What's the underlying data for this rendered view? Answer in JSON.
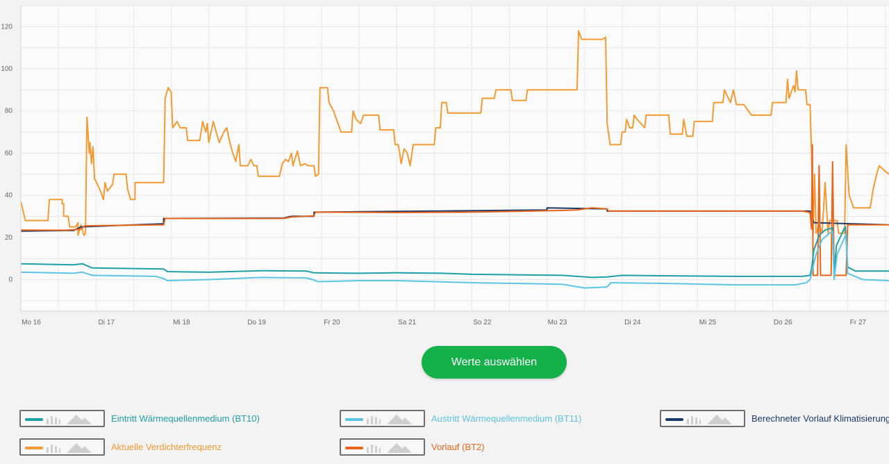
{
  "chart_data": {
    "type": "line",
    "x_range": [
      0,
      11.55
    ],
    "x_ticks": [
      {
        "x": 0.12,
        "label": "Mo 16"
      },
      {
        "x": 1.12,
        "label": "Di 17"
      },
      {
        "x": 2.12,
        "label": "Mi 18"
      },
      {
        "x": 3.12,
        "label": "Do 19"
      },
      {
        "x": 4.12,
        "label": "Fr 20"
      },
      {
        "x": 5.12,
        "label": "Sa 21"
      },
      {
        "x": 6.12,
        "label": "So 22"
      },
      {
        "x": 7.12,
        "label": "Mo 23"
      },
      {
        "x": 8.12,
        "label": "Di 24"
      },
      {
        "x": 9.12,
        "label": "Mi 25"
      },
      {
        "x": 10.12,
        "label": "Do 26"
      },
      {
        "x": 11.12,
        "label": "Fr 27"
      }
    ],
    "ylim": [
      -15,
      130
    ],
    "y_ticks": [
      0,
      20,
      40,
      60,
      80,
      100,
      120
    ],
    "grid": true,
    "series": [
      {
        "name": "Aktuelle Verdichterfrequenz",
        "color": "#f39a32",
        "points": [
          [
            0,
            37
          ],
          [
            0.02,
            34
          ],
          [
            0.06,
            28
          ],
          [
            0.36,
            28
          ],
          [
            0.38,
            38
          ],
          [
            0.55,
            38
          ],
          [
            0.55,
            36
          ],
          [
            0.57,
            36
          ],
          [
            0.57,
            30
          ],
          [
            0.63,
            30
          ],
          [
            0.65,
            25
          ],
          [
            0.73,
            25
          ],
          [
            0.76,
            27
          ],
          [
            0.76,
            21
          ],
          [
            0.8,
            26
          ],
          [
            0.84,
            21
          ],
          [
            0.86,
            22
          ],
          [
            0.88,
            77
          ],
          [
            0.89,
            72
          ],
          [
            0.91,
            60
          ],
          [
            0.92,
            65
          ],
          [
            0.94,
            55
          ],
          [
            0.96,
            63
          ],
          [
            0.98,
            48
          ],
          [
            1.06,
            42
          ],
          [
            1.1,
            38
          ],
          [
            1.12,
            46
          ],
          [
            1.15,
            42
          ],
          [
            1.22,
            45
          ],
          [
            1.24,
            50
          ],
          [
            1.4,
            50
          ],
          [
            1.42,
            43
          ],
          [
            1.46,
            38
          ],
          [
            1.52,
            38
          ],
          [
            1.52,
            46
          ],
          [
            1.9,
            46
          ],
          [
            1.92,
            86
          ],
          [
            1.96,
            91
          ],
          [
            2.0,
            89
          ],
          [
            2.02,
            72
          ],
          [
            2.08,
            75
          ],
          [
            2.12,
            72
          ],
          [
            2.2,
            72
          ],
          [
            2.22,
            66
          ],
          [
            2.38,
            66
          ],
          [
            2.42,
            75
          ],
          [
            2.46,
            70
          ],
          [
            2.48,
            74
          ],
          [
            2.5,
            65
          ],
          [
            2.56,
            75
          ],
          [
            2.6,
            70
          ],
          [
            2.64,
            65
          ],
          [
            2.7,
            70
          ],
          [
            2.74,
            72
          ],
          [
            2.78,
            65
          ],
          [
            2.82,
            60
          ],
          [
            2.86,
            56
          ],
          [
            2.9,
            64
          ],
          [
            2.92,
            54
          ],
          [
            3.02,
            54
          ],
          [
            3.06,
            57
          ],
          [
            3.1,
            54
          ],
          [
            3.14,
            54
          ],
          [
            3.16,
            49
          ],
          [
            3.44,
            49
          ],
          [
            3.48,
            55
          ],
          [
            3.52,
            57
          ],
          [
            3.56,
            56
          ],
          [
            3.6,
            60
          ],
          [
            3.62,
            54
          ],
          [
            3.68,
            61
          ],
          [
            3.72,
            54
          ],
          [
            3.78,
            55
          ],
          [
            3.82,
            54
          ],
          [
            3.9,
            54
          ],
          [
            3.92,
            49
          ],
          [
            3.96,
            50
          ],
          [
            3.98,
            91
          ],
          [
            4.08,
            91
          ],
          [
            4.1,
            84
          ],
          [
            4.16,
            80
          ],
          [
            4.2,
            76
          ],
          [
            4.24,
            72
          ],
          [
            4.26,
            70
          ],
          [
            4.4,
            70
          ],
          [
            4.42,
            80
          ],
          [
            4.46,
            76
          ],
          [
            4.52,
            74
          ],
          [
            4.56,
            78
          ],
          [
            4.76,
            78
          ],
          [
            4.78,
            71
          ],
          [
            4.96,
            71
          ],
          [
            4.98,
            64
          ],
          [
            5.02,
            64
          ],
          [
            5.04,
            60
          ],
          [
            5.06,
            55
          ],
          [
            5.1,
            62
          ],
          [
            5.14,
            60
          ],
          [
            5.18,
            54
          ],
          [
            5.22,
            64
          ],
          [
            5.5,
            64
          ],
          [
            5.52,
            72
          ],
          [
            5.58,
            72
          ],
          [
            5.6,
            84
          ],
          [
            5.66,
            84
          ],
          [
            5.68,
            79
          ],
          [
            6.12,
            79
          ],
          [
            6.14,
            86
          ],
          [
            6.3,
            86
          ],
          [
            6.32,
            90
          ],
          [
            6.52,
            90
          ],
          [
            6.54,
            85
          ],
          [
            6.72,
            85
          ],
          [
            6.74,
            90
          ],
          [
            7.4,
            90
          ],
          [
            7.42,
            118
          ],
          [
            7.46,
            114
          ],
          [
            7.74,
            114
          ],
          [
            7.78,
            115
          ],
          [
            7.8,
            74
          ],
          [
            7.84,
            64
          ],
          [
            7.98,
            64
          ],
          [
            8.0,
            70
          ],
          [
            8.04,
            70
          ],
          [
            8.06,
            76
          ],
          [
            8.1,
            72
          ],
          [
            8.14,
            72
          ],
          [
            8.16,
            78
          ],
          [
            8.2,
            76
          ],
          [
            8.3,
            72
          ],
          [
            8.32,
            78
          ],
          [
            8.62,
            78
          ],
          [
            8.64,
            69
          ],
          [
            8.8,
            69
          ],
          [
            8.82,
            76
          ],
          [
            8.86,
            68
          ],
          [
            8.94,
            68
          ],
          [
            8.96,
            75
          ],
          [
            9.2,
            75
          ],
          [
            9.22,
            84
          ],
          [
            9.34,
            84
          ],
          [
            9.36,
            90
          ],
          [
            9.44,
            84
          ],
          [
            9.48,
            90
          ],
          [
            9.52,
            83
          ],
          [
            9.62,
            83
          ],
          [
            9.64,
            82
          ],
          [
            9.72,
            78
          ],
          [
            9.98,
            78
          ],
          [
            10.0,
            84
          ],
          [
            10.18,
            84
          ],
          [
            10.2,
            95
          ],
          [
            10.22,
            86
          ],
          [
            10.28,
            92
          ],
          [
            10.3,
            89
          ],
          [
            10.32,
            99
          ],
          [
            10.34,
            90
          ],
          [
            10.44,
            90
          ],
          [
            10.46,
            83
          ],
          [
            10.5,
            83
          ],
          [
            10.52,
            60
          ],
          [
            10.54,
            22
          ],
          [
            10.56,
            50
          ],
          [
            10.58,
            22
          ],
          [
            10.62,
            26
          ],
          [
            10.66,
            22
          ],
          [
            10.7,
            46
          ],
          [
            10.74,
            22
          ],
          [
            10.76,
            28
          ],
          [
            10.86,
            28
          ],
          [
            10.88,
            22
          ],
          [
            10.96,
            22
          ],
          [
            10.98,
            64
          ],
          [
            11.02,
            40
          ],
          [
            11.06,
            36
          ],
          [
            11.08,
            34
          ],
          [
            11.3,
            34
          ],
          [
            11.34,
            43
          ],
          [
            11.36,
            46
          ],
          [
            11.4,
            52
          ],
          [
            11.42,
            54
          ],
          [
            11.48,
            52
          ],
          [
            11.55,
            50
          ]
        ]
      },
      {
        "name": "Berechneter Vorlauf Klimatisierung",
        "color": "#1b3a6b",
        "points": [
          [
            0,
            23
          ],
          [
            0.7,
            23.3
          ],
          [
            0.8,
            25
          ],
          [
            1.9,
            26.5
          ],
          [
            1.9,
            29
          ],
          [
            3.5,
            29.2
          ],
          [
            3.6,
            30
          ],
          [
            3.9,
            30
          ],
          [
            3.9,
            32
          ],
          [
            7.0,
            33
          ],
          [
            7.0,
            34
          ],
          [
            7.8,
            33.5
          ],
          [
            7.8,
            32.5
          ],
          [
            10.5,
            32.5
          ],
          [
            10.55,
            27
          ],
          [
            11.55,
            26
          ]
        ]
      },
      {
        "name": "Vorlauf (BT2)",
        "color": "#e8651c",
        "points": [
          [
            0,
            23.5
          ],
          [
            0.6,
            23.4
          ],
          [
            0.8,
            24
          ],
          [
            0.85,
            25.5
          ],
          [
            1.9,
            26
          ],
          [
            1.92,
            29
          ],
          [
            3.5,
            29
          ],
          [
            3.6,
            29.7
          ],
          [
            3.9,
            30.2
          ],
          [
            3.92,
            32
          ],
          [
            5.0,
            31.8
          ],
          [
            6.0,
            32
          ],
          [
            7.2,
            32.8
          ],
          [
            7.4,
            33
          ],
          [
            7.6,
            34
          ],
          [
            7.8,
            33.5
          ],
          [
            7.82,
            32.5
          ],
          [
            10.4,
            32.5
          ],
          [
            10.5,
            31.8
          ],
          [
            10.52,
            24
          ],
          [
            10.53,
            64
          ],
          [
            10.54,
            2
          ],
          [
            10.6,
            2
          ],
          [
            10.62,
            54
          ],
          [
            10.64,
            2
          ],
          [
            10.78,
            2
          ],
          [
            10.8,
            56
          ],
          [
            10.82,
            2
          ],
          [
            10.98,
            2
          ],
          [
            11.0,
            26
          ],
          [
            11.55,
            26
          ]
        ]
      },
      {
        "name": "Eintritt Wärmequellenmedium (BT10)",
        "color": "#1f9fa6",
        "points": [
          [
            0,
            7.5
          ],
          [
            0.7,
            7
          ],
          [
            0.82,
            7.5
          ],
          [
            0.95,
            5.5
          ],
          [
            1.9,
            5
          ],
          [
            1.95,
            3.8
          ],
          [
            2.5,
            3.5
          ],
          [
            3.2,
            4.2
          ],
          [
            3.8,
            4
          ],
          [
            3.9,
            3.2
          ],
          [
            4.5,
            3
          ],
          [
            5.0,
            3.2
          ],
          [
            5.6,
            3
          ],
          [
            6.0,
            2.5
          ],
          [
            7.2,
            2
          ],
          [
            7.6,
            1
          ],
          [
            7.8,
            1.2
          ],
          [
            8.0,
            2
          ],
          [
            8.5,
            1.8
          ],
          [
            9.5,
            1.5
          ],
          [
            10.4,
            1.5
          ],
          [
            10.5,
            2
          ],
          [
            10.52,
            5
          ],
          [
            10.55,
            14
          ],
          [
            10.62,
            21
          ],
          [
            10.7,
            23.5
          ],
          [
            10.75,
            24
          ],
          [
            10.8,
            24.5
          ],
          [
            10.82,
            2
          ],
          [
            10.85,
            16
          ],
          [
            10.95,
            24
          ],
          [
            10.97,
            25
          ],
          [
            11.0,
            6
          ],
          [
            11.05,
            5
          ],
          [
            11.1,
            4
          ],
          [
            11.55,
            4
          ]
        ]
      },
      {
        "name": "Austritt Wärmequellenmedium (BT11)",
        "color": "#5dc4e3",
        "points": [
          [
            0,
            3.5
          ],
          [
            0.7,
            3
          ],
          [
            0.82,
            3.5
          ],
          [
            0.95,
            2
          ],
          [
            1.8,
            1.5
          ],
          [
            1.9,
            0.5
          ],
          [
            1.95,
            -0.5
          ],
          [
            2.5,
            0
          ],
          [
            3.2,
            1
          ],
          [
            3.8,
            0.8
          ],
          [
            3.9,
            -0.2
          ],
          [
            3.95,
            -1
          ],
          [
            4.5,
            -0.5
          ],
          [
            5.0,
            -0.5
          ],
          [
            6.0,
            -1.5
          ],
          [
            7.2,
            -2.2
          ],
          [
            7.5,
            -4
          ],
          [
            7.8,
            -3.5
          ],
          [
            7.85,
            -1.5
          ],
          [
            8.5,
            -1.8
          ],
          [
            9.5,
            -2.5
          ],
          [
            10.3,
            -2.5
          ],
          [
            10.45,
            -1.5
          ],
          [
            10.5,
            0
          ],
          [
            10.52,
            3
          ],
          [
            10.58,
            12
          ],
          [
            10.66,
            19
          ],
          [
            10.76,
            22
          ],
          [
            10.8,
            23
          ],
          [
            10.82,
            0
          ],
          [
            10.86,
            12
          ],
          [
            10.96,
            20
          ],
          [
            10.98,
            22
          ],
          [
            11.0,
            3
          ],
          [
            11.2,
            0
          ],
          [
            11.55,
            -0.5
          ]
        ]
      }
    ]
  },
  "button": {
    "label": "Werte auswählen"
  },
  "legend": [
    {
      "label": "Eintritt Wärmequellenmedium (BT10)",
      "color": "#1f9fa6"
    },
    {
      "label": "Austritt Wärmequellenmedium (BT11)",
      "color": "#5dc4e3"
    },
    {
      "label": "Berechneter Vorlauf Klimatisierung",
      "color": "#1b3a6b"
    },
    {
      "label": "Aktuelle Verdichterfrequenz",
      "color": "#f39a32"
    },
    {
      "label": "Vorlauf (BT2)",
      "color": "#e8651c"
    }
  ]
}
